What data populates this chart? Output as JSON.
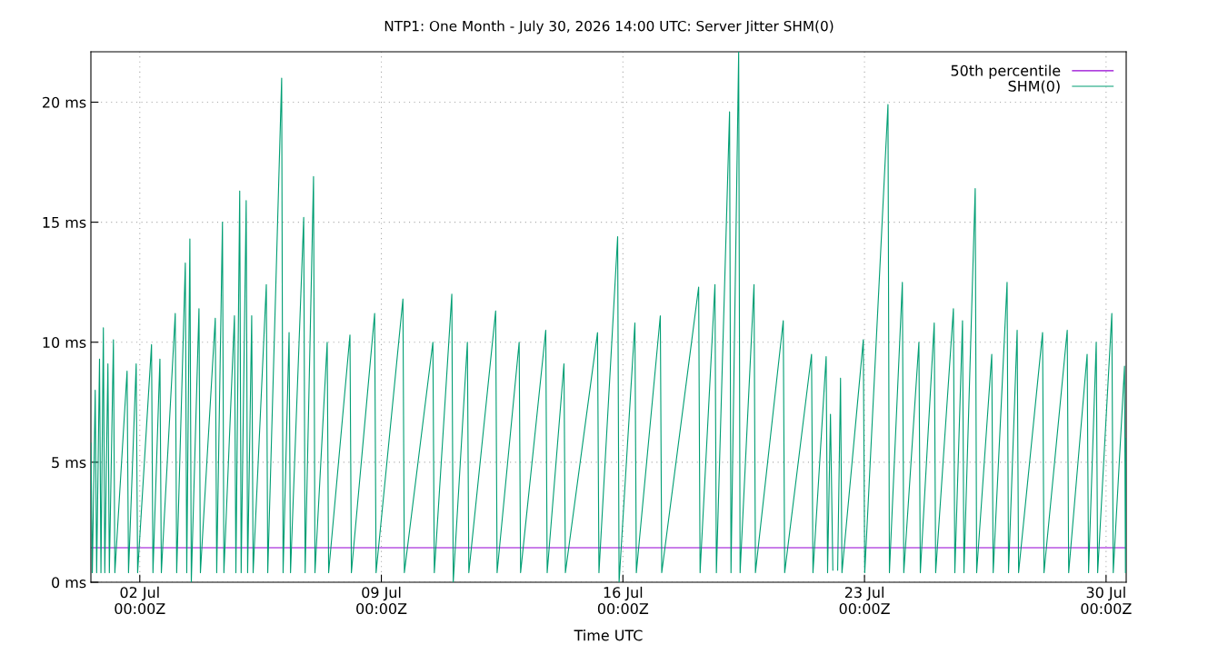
{
  "chart_data": {
    "type": "line",
    "title": "NTP1: One Month - July 30, 2026 14:00 UTC: Server Jitter SHM(0)",
    "xlabel": "Time UTC",
    "xlim": [
      "2026-06-30T14:00",
      "2026-07-30T14:00"
    ],
    "xticks": [
      {
        "value": "2026-07-02",
        "label": "02 Jul\n00:00Z"
      },
      {
        "value": "2026-07-09",
        "label": "09 Jul\n00:00Z"
      },
      {
        "value": "2026-07-16",
        "label": "16 Jul\n00:00Z"
      },
      {
        "value": "2026-07-23",
        "label": "23 Jul\n00:00Z"
      },
      {
        "value": "2026-07-30",
        "label": "30 Jul\n00:00Z"
      }
    ],
    "ylim": [
      0,
      22.1
    ],
    "yticks": [
      {
        "value": 0,
        "label": "0 ms"
      },
      {
        "value": 5,
        "label": "5 ms"
      },
      {
        "value": 10,
        "label": "10 ms"
      },
      {
        "value": 15,
        "label": "15 ms"
      },
      {
        "value": 20,
        "label": "20 ms"
      }
    ],
    "grid": true,
    "legend": "top right",
    "line_style": "solid",
    "marker": "none",
    "series": [
      {
        "name": "50th percentile",
        "color": "#9400d3",
        "x": [
          "2026-06-30T14:00",
          "2026-07-30T14:00"
        ],
        "values": [
          1.44,
          1.44
        ]
      },
      {
        "name": "SHM(0)",
        "color": "#009e73",
        "x": [
          "2026-06-30T14:00",
          "2026-06-30T15:00",
          "2026-06-30T17:00",
          "2026-06-30T18:00",
          "2026-06-30T20:00",
          "2026-06-30T21:00",
          "2026-06-30T22:40",
          "2026-06-30T23:40",
          "2026-07-01T01:50",
          "2026-07-01T02:50",
          "2026-07-01T05:40",
          "2026-07-01T06:40",
          "2026-07-01T15:10",
          "2026-07-01T16:10",
          "2026-07-01T21:30",
          "2026-07-01T22:30",
          "2026-07-02T08:10",
          "2026-07-02T09:10",
          "2026-07-02T14:00",
          "2026-07-02T15:00",
          "2026-07-03T00:40",
          "2026-07-03T01:40",
          "2026-07-03T07:40",
          "2026-07-03T08:40",
          "2026-07-03T10:50",
          "2026-07-03T11:50",
          "2026-07-03T17:10",
          "2026-07-03T18:10",
          "2026-07-04T04:30",
          "2026-07-04T05:30",
          "2026-07-04T09:30",
          "2026-07-04T10:30",
          "2026-07-04T17:50",
          "2026-07-04T18:50",
          "2026-07-04T21:30",
          "2026-07-04T22:30",
          "2026-07-05T02:00",
          "2026-07-05T03:00",
          "2026-07-05T05:50",
          "2026-07-05T06:50",
          "2026-07-05T16:00",
          "2026-07-05T17:00",
          "2026-07-06T02:40",
          "2026-07-06T03:40",
          "2026-07-06T07:50",
          "2026-07-06T08:50",
          "2026-07-06T18:00",
          "2026-07-06T19:00",
          "2026-07-07T00:50",
          "2026-07-07T01:50",
          "2026-07-07T10:20",
          "2026-07-07T11:20",
          "2026-07-08T02:10",
          "2026-07-08T03:10",
          "2026-07-08T19:20",
          "2026-07-08T20:20",
          "2026-07-09T15:00",
          "2026-07-09T16:00",
          "2026-07-10T11:50",
          "2026-07-10T12:50",
          "2026-07-11T01:00",
          "2026-07-11T02:00",
          "2026-07-11T11:50",
          "2026-07-11T12:50",
          "2026-07-12T07:30",
          "2026-07-12T08:30",
          "2026-07-12T23:50",
          "2026-07-13T00:50",
          "2026-07-13T18:20",
          "2026-07-13T19:20",
          "2026-07-14T07:00",
          "2026-07-14T08:00",
          "2026-07-15T06:20",
          "2026-07-15T07:20",
          "2026-07-15T20:20",
          "2026-07-15T21:20",
          "2026-07-16T08:20",
          "2026-07-16T09:20",
          "2026-07-17T02:00",
          "2026-07-17T03:00",
          "2026-07-18T04:40",
          "2026-07-18T05:40",
          "2026-07-18T16:00",
          "2026-07-18T17:00",
          "2026-07-19T02:10",
          "2026-07-19T03:10",
          "2026-07-19T08:30",
          "2026-07-19T09:30",
          "2026-07-19T19:10",
          "2026-07-19T20:10",
          "2026-07-20T15:30",
          "2026-07-20T16:30",
          "2026-07-21T11:10",
          "2026-07-21T12:10",
          "2026-07-21T21:20",
          "2026-07-21T22:20",
          "2026-07-22T00:20",
          "2026-07-22T02:00",
          "2026-07-22T03:30",
          "2026-07-22T05:20",
          "2026-07-22T07:20",
          "2026-07-22T08:20",
          "2026-07-22T23:10",
          "2026-07-23T00:10",
          "2026-07-23T16:20",
          "2026-07-23T17:20",
          "2026-07-24T02:20",
          "2026-07-24T03:20",
          "2026-07-24T13:50",
          "2026-07-24T14:50",
          "2026-07-25T00:30",
          "2026-07-25T01:30",
          "2026-07-25T13:50",
          "2026-07-25T14:50",
          "2026-07-25T20:10",
          "2026-07-25T21:10",
          "2026-07-26T05:00",
          "2026-07-26T06:00",
          "2026-07-26T16:30",
          "2026-07-26T17:30",
          "2026-07-27T03:10",
          "2026-07-27T04:10",
          "2026-07-27T10:10",
          "2026-07-27T11:10",
          "2026-07-28T03:50",
          "2026-07-28T04:50",
          "2026-07-28T21:00",
          "2026-07-28T22:00",
          "2026-07-29T10:50",
          "2026-07-29T11:50",
          "2026-07-29T17:10",
          "2026-07-29T18:10",
          "2026-07-30T04:00",
          "2026-07-30T05:00",
          "2026-07-30T12:50",
          "2026-07-30T13:30",
          "2026-07-30T14:00"
        ],
        "values": [
          5.8,
          0.4,
          8.0,
          0.4,
          9.3,
          0.4,
          10.6,
          0.4,
          9.1,
          0.4,
          10.1,
          0.4,
          8.8,
          0.4,
          9.1,
          0.4,
          9.9,
          0.4,
          9.3,
          0.4,
          11.2,
          0.4,
          13.3,
          0.4,
          14.3,
          0.0,
          11.4,
          0.4,
          11.0,
          0.4,
          15.0,
          0.4,
          11.1,
          0.4,
          16.3,
          0.4,
          15.9,
          0.4,
          11.1,
          0.4,
          12.4,
          0.4,
          21.0,
          0.4,
          10.4,
          0.4,
          15.2,
          0.4,
          16.9,
          0.4,
          10.0,
          0.4,
          10.3,
          0.4,
          11.2,
          0.4,
          11.8,
          0.4,
          10.0,
          0.4,
          12.0,
          0.0,
          10.0,
          0.4,
          11.3,
          0.4,
          10.0,
          0.4,
          10.5,
          0.4,
          9.1,
          0.4,
          10.4,
          0.4,
          14.4,
          0.0,
          10.8,
          0.4,
          11.1,
          0.4,
          12.3,
          0.4,
          12.4,
          0.4,
          19.6,
          0.4,
          22.1,
          0.4,
          12.4,
          0.4,
          10.9,
          0.4,
          9.5,
          0.4,
          9.4,
          0.4,
          7.0,
          0.5,
          null,
          0.5,
          8.5,
          0.4,
          10.1,
          0.4,
          19.9,
          0.4,
          12.5,
          0.4,
          10.0,
          0.4,
          10.8,
          0.4,
          11.4,
          0.4,
          10.9,
          0.4,
          16.4,
          0.4,
          9.5,
          0.4,
          12.5,
          0.4,
          10.5,
          0.4,
          10.4,
          0.4,
          10.5,
          0.4,
          9.5,
          0.4,
          10.0,
          0.4,
          11.2,
          0.4,
          9.0,
          0.4,
          6.0
        ]
      }
    ]
  }
}
